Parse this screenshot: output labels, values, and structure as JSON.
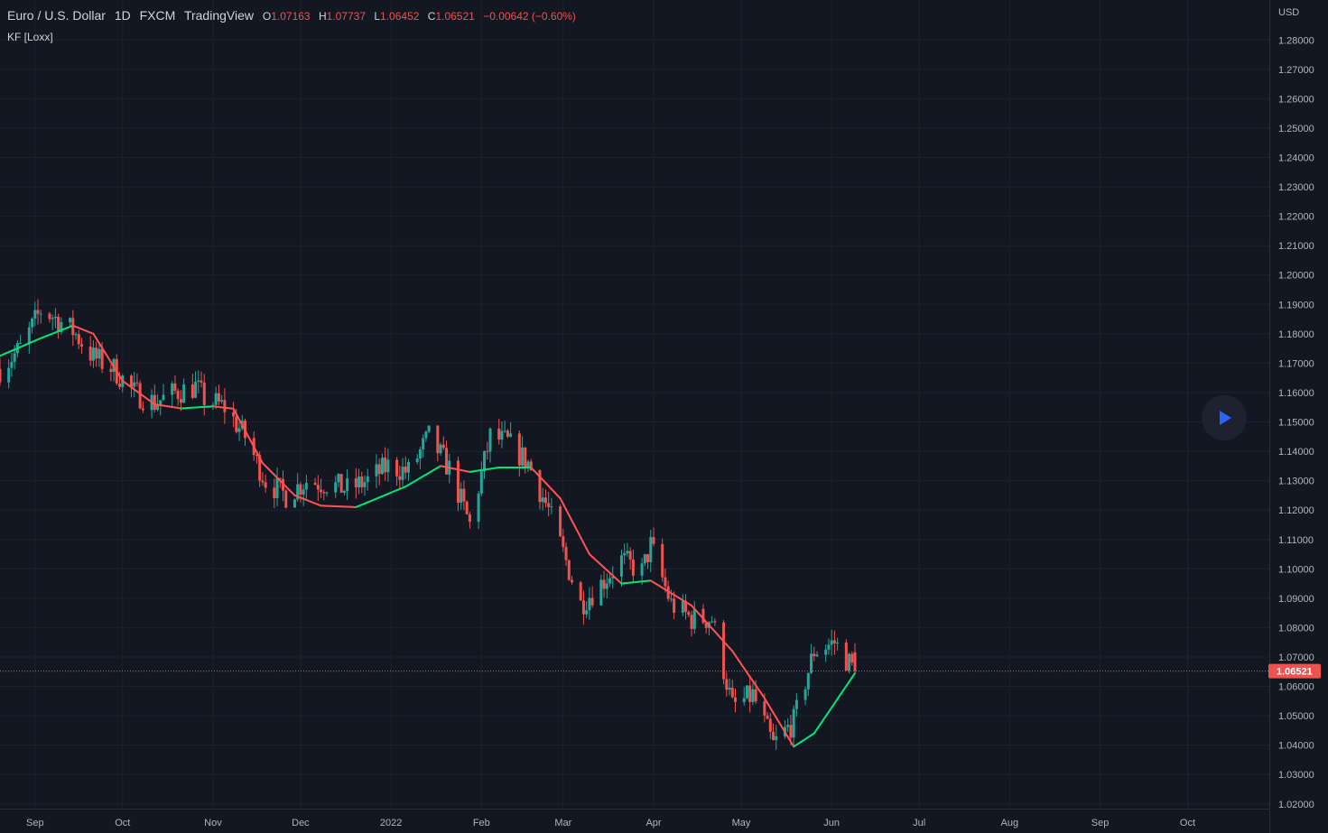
{
  "header": {
    "symbol": "Euro / U.S. Dollar",
    "interval": "1D",
    "exchange": "FXCM",
    "source": "TradingView",
    "ohlc": {
      "o_label": "O",
      "o": "1.07163",
      "h_label": "H",
      "h": "1.07737",
      "l_label": "L",
      "l": "1.06452",
      "c_label": "C",
      "c": "1.06521",
      "change": "−0.00642 (−0.60%)"
    },
    "indicator": "KF [Loxx]"
  },
  "axis": {
    "currency": "USD",
    "last_price_label": "1.06521"
  },
  "colors": {
    "bg": "#131722",
    "grid": "#1e222d",
    "up": "#26a69a",
    "down": "#ef5350",
    "kf_up": "#00e676",
    "kf_down": "#ff5252",
    "text": "#b2b5be"
  },
  "controls": {
    "play_icon": "play-icon"
  },
  "chart_data": {
    "type": "candlestick",
    "y_ticks": [
      "1.02000",
      "1.03000",
      "1.04000",
      "1.05000",
      "1.06000",
      "1.07000",
      "1.08000",
      "1.09000",
      "1.10000",
      "1.11000",
      "1.12000",
      "1.13000",
      "1.14000",
      "1.15000",
      "1.16000",
      "1.17000",
      "1.18000",
      "1.19000",
      "1.20000",
      "1.21000",
      "1.22000",
      "1.23000",
      "1.24000",
      "1.25000",
      "1.26000",
      "1.27000",
      "1.28000"
    ],
    "ylim": [
      1.0187,
      1.285
    ],
    "x_ticks": [
      {
        "label": "Sep",
        "date": "2021-09-01"
      },
      {
        "label": "Oct",
        "date": "2021-10-01"
      },
      {
        "label": "Nov",
        "date": "2021-11-01"
      },
      {
        "label": "Dec",
        "date": "2021-12-01"
      },
      {
        "label": "2022",
        "date": "2022-01-01"
      },
      {
        "label": "Feb",
        "date": "2022-02-01"
      },
      {
        "label": "Mar",
        "date": "2022-03-01"
      },
      {
        "label": "Apr",
        "date": "2022-04-01"
      },
      {
        "label": "May",
        "date": "2022-05-01"
      },
      {
        "label": "Jun",
        "date": "2022-06-01"
      },
      {
        "label": "Jul",
        "date": "2022-07-01"
      },
      {
        "label": "Aug",
        "date": "2022-08-01"
      },
      {
        "label": "Sep",
        "date": "2022-09-01"
      },
      {
        "label": "Oct",
        "date": "2022-10-01"
      }
    ],
    "xlim": [
      "2021-08-20",
      "2022-10-29"
    ],
    "last_price": 1.06521,
    "kf_keypoints": [
      [
        "2021-08-20",
        1.1725
      ],
      [
        "2021-09-03",
        1.1785
      ],
      [
        "2021-09-14",
        1.1828
      ],
      [
        "2021-09-21",
        1.18
      ],
      [
        "2021-10-01",
        1.164
      ],
      [
        "2021-10-12",
        1.156
      ],
      [
        "2021-10-21",
        1.1546
      ],
      [
        "2021-11-01",
        1.1553
      ],
      [
        "2021-11-08",
        1.1545
      ],
      [
        "2021-11-18",
        1.136
      ],
      [
        "2021-11-29",
        1.125
      ],
      [
        "2021-12-08",
        1.1215
      ],
      [
        "2021-12-20",
        1.121
      ],
      [
        "2022-01-06",
        1.128
      ],
      [
        "2022-01-18",
        1.135
      ],
      [
        "2022-01-28",
        1.133
      ],
      [
        "2022-02-07",
        1.1345
      ],
      [
        "2022-02-18",
        1.1345
      ],
      [
        "2022-02-28",
        1.124
      ],
      [
        "2022-03-10",
        1.105
      ],
      [
        "2022-03-21",
        1.095
      ],
      [
        "2022-03-31",
        1.096
      ],
      [
        "2022-04-14",
        1.0875
      ],
      [
        "2022-04-28",
        1.072
      ],
      [
        "2022-05-09",
        1.056
      ],
      [
        "2022-05-19",
        1.0395
      ],
      [
        "2022-05-26",
        1.044
      ],
      [
        "2022-06-09",
        1.0645
      ]
    ],
    "candle_keypoints": [
      [
        "2021-08-20",
        1.168
      ],
      [
        "2021-08-27",
        1.175
      ],
      [
        "2021-09-03",
        1.188
      ],
      [
        "2021-09-07",
        1.186
      ],
      [
        "2021-09-14",
        1.181
      ],
      [
        "2021-09-21",
        1.172
      ],
      [
        "2021-09-28",
        1.168
      ],
      [
        "2021-10-05",
        1.16
      ],
      [
        "2021-10-12",
        1.1565
      ],
      [
        "2021-10-19",
        1.16
      ],
      [
        "2021-10-26",
        1.162
      ],
      [
        "2021-10-29",
        1.158
      ],
      [
        "2021-11-05",
        1.155
      ],
      [
        "2021-11-12",
        1.145
      ],
      [
        "2021-11-19",
        1.13
      ],
      [
        "2021-11-26",
        1.125
      ],
      [
        "2021-12-03",
        1.13
      ],
      [
        "2021-12-10",
        1.129
      ],
      [
        "2021-12-17",
        1.127
      ],
      [
        "2021-12-24",
        1.13
      ],
      [
        "2021-12-31",
        1.135
      ],
      [
        "2022-01-07",
        1.133
      ],
      [
        "2022-01-14",
        1.145
      ],
      [
        "2022-01-21",
        1.134
      ],
      [
        "2022-01-28",
        1.115
      ],
      [
        "2022-02-04",
        1.145
      ],
      [
        "2022-02-10",
        1.143
      ],
      [
        "2022-02-17",
        1.136
      ],
      [
        "2022-02-24",
        1.12
      ],
      [
        "2022-03-07",
        1.088
      ],
      [
        "2022-03-14",
        1.095
      ],
      [
        "2022-03-21",
        1.103
      ],
      [
        "2022-03-28",
        1.099
      ],
      [
        "2022-03-31",
        1.108
      ],
      [
        "2022-04-07",
        1.088
      ],
      [
        "2022-04-14",
        1.083
      ],
      [
        "2022-04-21",
        1.083
      ],
      [
        "2022-04-28",
        1.053
      ],
      [
        "2022-05-05",
        1.057
      ],
      [
        "2022-05-12",
        1.04
      ],
      [
        "2022-05-19",
        1.048
      ],
      [
        "2022-05-26",
        1.072
      ],
      [
        "2022-06-02",
        1.075
      ],
      [
        "2022-06-09",
        1.0652
      ]
    ],
    "series": [
      {
        "name": "Euro / U.S. Dollar",
        "type": "candlestick"
      },
      {
        "name": "KF [Loxx]",
        "type": "line"
      }
    ]
  }
}
